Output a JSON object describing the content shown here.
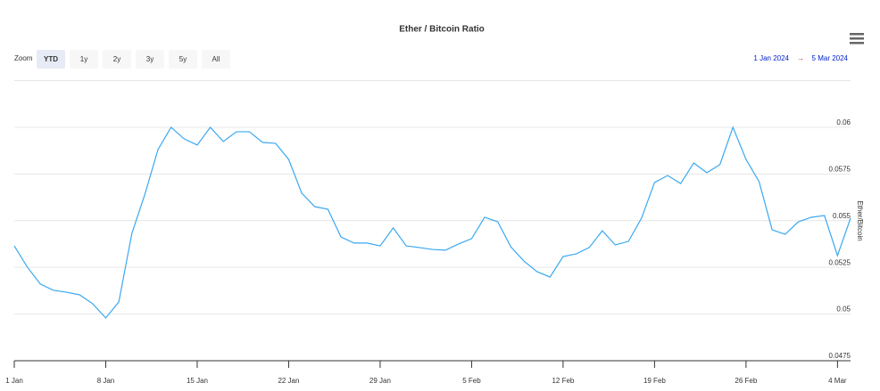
{
  "chart_data": {
    "type": "line",
    "title": "Ether / Bitcoin Ratio",
    "y_axis_label": "Ether/Bitcoin",
    "x": [
      "1 Jan",
      "2 Jan",
      "3 Jan",
      "4 Jan",
      "5 Jan",
      "6 Jan",
      "7 Jan",
      "8 Jan",
      "9 Jan",
      "10 Jan",
      "11 Jan",
      "12 Jan",
      "13 Jan",
      "14 Jan",
      "15 Jan",
      "16 Jan",
      "17 Jan",
      "18 Jan",
      "19 Jan",
      "20 Jan",
      "21 Jan",
      "22 Jan",
      "23 Jan",
      "24 Jan",
      "25 Jan",
      "26 Jan",
      "27 Jan",
      "28 Jan",
      "29 Jan",
      "30 Jan",
      "31 Jan",
      "1 Feb",
      "2 Feb",
      "3 Feb",
      "4 Feb",
      "5 Feb",
      "6 Feb",
      "7 Feb",
      "8 Feb",
      "9 Feb",
      "10 Feb",
      "11 Feb",
      "12 Feb",
      "13 Feb",
      "14 Feb",
      "15 Feb",
      "16 Feb",
      "17 Feb",
      "18 Feb",
      "19 Feb",
      "20 Feb",
      "21 Feb",
      "22 Feb",
      "23 Feb",
      "24 Feb",
      "25 Feb",
      "26 Feb",
      "27 Feb",
      "28 Feb",
      "29 Feb",
      "1 Mar",
      "2 Mar",
      "3 Mar",
      "4 Mar",
      "5 Mar"
    ],
    "series": [
      {
        "name": "Ether/Bitcoin",
        "color": "#3aa8f0",
        "values": [
          0.05365,
          0.05251,
          0.0516,
          0.05127,
          0.05117,
          0.05103,
          0.05055,
          0.04979,
          0.05065,
          0.05432,
          0.05642,
          0.05881,
          0.06,
          0.05938,
          0.05905,
          0.06,
          0.05924,
          0.05976,
          0.05976,
          0.05919,
          0.05914,
          0.05828,
          0.05647,
          0.05575,
          0.05561,
          0.05413,
          0.0538,
          0.0538,
          0.05365,
          0.05461,
          0.05365,
          0.05356,
          0.05346,
          0.05342,
          0.05375,
          0.05404,
          0.05518,
          0.05494,
          0.0536,
          0.05284,
          0.05227,
          0.05198,
          0.05308,
          0.05322,
          0.05356,
          0.05446,
          0.0537,
          0.05389,
          0.05513,
          0.05704,
          0.05742,
          0.05699,
          0.05809,
          0.05757,
          0.058,
          0.06,
          0.05828,
          0.05709,
          0.05451,
          0.05427,
          0.05494,
          0.05518,
          0.05528,
          0.05313,
          0.05513
        ]
      }
    ],
    "xticks": [
      "1 Jan",
      "8 Jan",
      "15 Jan",
      "22 Jan",
      "29 Jan",
      "5 Feb",
      "12 Feb",
      "19 Feb",
      "26 Feb",
      "4 Mar"
    ],
    "ylim": [
      0.0475,
      0.0625
    ],
    "yticks": [
      0.0475,
      0.05,
      0.0525,
      0.055,
      0.0575,
      0.06
    ],
    "grid": true
  },
  "range_selector": {
    "label": "Zoom",
    "buttons": [
      "YTD",
      "1y",
      "2y",
      "3y",
      "5y",
      "All"
    ],
    "selected": 0,
    "from": "1 Jan 2024",
    "arrow": "→",
    "to": "5 Mar 2024"
  }
}
